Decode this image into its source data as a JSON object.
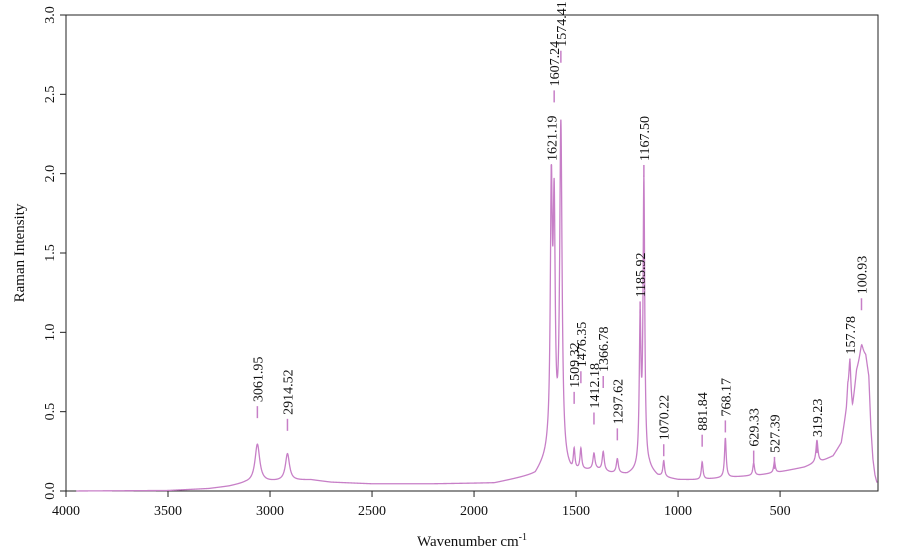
{
  "chart_data": {
    "type": "line",
    "title": "",
    "xlabel": "Wavenumber cm",
    "xlabel_superscript": "-1",
    "ylabel": "Raman Intensity",
    "xlim": [
      4000,
      20
    ],
    "ylim": [
      0,
      3.0
    ],
    "x_reversed": true,
    "grid": false,
    "xticks": [
      4000,
      3500,
      3000,
      2500,
      2000,
      1500,
      1000,
      500
    ],
    "xtick_labels": [
      "4000",
      "3500",
      "3000",
      "2500",
      "2000",
      "1500",
      "1000",
      "500"
    ],
    "yticks": [
      0,
      0.5,
      1.0,
      1.5,
      2.0,
      2.5,
      3.0
    ],
    "ytick_labels": [
      "0.0",
      "0.5",
      "1.0",
      "1.5",
      "2.0",
      "2.5",
      "3.0"
    ],
    "line_color": "#c77fc7",
    "peak_marker_color": "#c77fc7",
    "baseline_points": [
      [
        3950,
        0.0
      ],
      [
        3500,
        0.003
      ],
      [
        3300,
        0.015
      ],
      [
        3200,
        0.03
      ],
      [
        3120,
        0.05
      ],
      [
        2980,
        0.06
      ],
      [
        2800,
        0.07
      ],
      [
        2700,
        0.055
      ],
      [
        2500,
        0.045
      ],
      [
        2200,
        0.045
      ],
      [
        1900,
        0.05
      ],
      [
        1700,
        0.1
      ],
      [
        1640,
        0.2
      ],
      [
        1560,
        0.14
      ],
      [
        1520,
        0.1
      ],
      [
        1480,
        0.12
      ],
      [
        1400,
        0.13
      ],
      [
        1330,
        0.11
      ],
      [
        1250,
        0.1
      ],
      [
        1200,
        0.12
      ],
      [
        1140,
        0.13
      ],
      [
        1100,
        0.09
      ],
      [
        1000,
        0.07
      ],
      [
        900,
        0.07
      ],
      [
        800,
        0.08
      ],
      [
        700,
        0.09
      ],
      [
        600,
        0.1
      ],
      [
        500,
        0.12
      ],
      [
        420,
        0.14
      ],
      [
        380,
        0.15
      ],
      [
        340,
        0.17
      ],
      [
        290,
        0.19
      ],
      [
        240,
        0.22
      ],
      [
        200,
        0.3
      ],
      [
        175,
        0.5
      ],
      [
        168,
        0.62
      ],
      [
        145,
        0.5
      ],
      [
        125,
        0.75
      ],
      [
        100,
        0.87
      ],
      [
        80,
        0.85
      ],
      [
        65,
        0.72
      ],
      [
        55,
        0.4
      ],
      [
        45,
        0.2
      ],
      [
        35,
        0.1
      ],
      [
        25,
        0.05
      ]
    ],
    "peaks": [
      {
        "x": 3061.95,
        "height": 0.24,
        "width": 14,
        "label": "3061.95",
        "label_y": 0.56
      },
      {
        "x": 2914.52,
        "height": 0.17,
        "width": 12,
        "label": "2914.52",
        "label_y": 0.48
      },
      {
        "x": 1621.19,
        "height": 1.6,
        "width": 6,
        "label": "1621.19",
        "label_y": 2.08
      },
      {
        "x": 1607.24,
        "height": 1.45,
        "width": 6,
        "label": "1607.24",
        "label_y": 2.55
      },
      {
        "x": 1574.41,
        "height": 2.12,
        "width": 7,
        "label": "1574.41",
        "label_y": 2.8
      },
      {
        "x": 1509.32,
        "height": 0.13,
        "width": 5,
        "label": "1509.32",
        "label_y": 0.65
      },
      {
        "x": 1476.35,
        "height": 0.13,
        "width": 5,
        "label": "1476.35",
        "label_y": 0.78
      },
      {
        "x": 1412.18,
        "height": 0.1,
        "width": 6,
        "label": "1412.18",
        "label_y": 0.52
      },
      {
        "x": 1366.78,
        "height": 0.12,
        "width": 6,
        "label": "1366.78",
        "label_y": 0.75
      },
      {
        "x": 1297.62,
        "height": 0.09,
        "width": 6,
        "label": "1297.62",
        "label_y": 0.42
      },
      {
        "x": 1185.92,
        "height": 0.9,
        "width": 5,
        "label": "1185.92",
        "label_y": 1.22
      },
      {
        "x": 1167.5,
        "height": 1.8,
        "width": 5,
        "label": "1167.50",
        "label_y": 2.08
      },
      {
        "x": 1070.22,
        "height": 0.1,
        "width": 5,
        "label": "1070.22",
        "label_y": 0.32
      },
      {
        "x": 881.84,
        "height": 0.11,
        "width": 5,
        "label": "881.84",
        "label_y": 0.38
      },
      {
        "x": 768.17,
        "height": 0.25,
        "width": 5,
        "label": "768.17",
        "label_y": 0.47
      },
      {
        "x": 629.33,
        "height": 0.08,
        "width": 5,
        "label": "629.33",
        "label_y": 0.28
      },
      {
        "x": 527.39,
        "height": 0.07,
        "width": 5,
        "label": "527.39",
        "label_y": 0.24
      },
      {
        "x": 319.23,
        "height": 0.14,
        "width": 6,
        "label": "319.23",
        "label_y": 0.34
      },
      {
        "x": 157.78,
        "height": 0.25,
        "width": 6,
        "label": "157.78",
        "label_y": 0.86
      },
      {
        "x": 100.93,
        "height": 0.05,
        "width": 10,
        "label": "100.93",
        "label_y": 1.24
      }
    ]
  }
}
